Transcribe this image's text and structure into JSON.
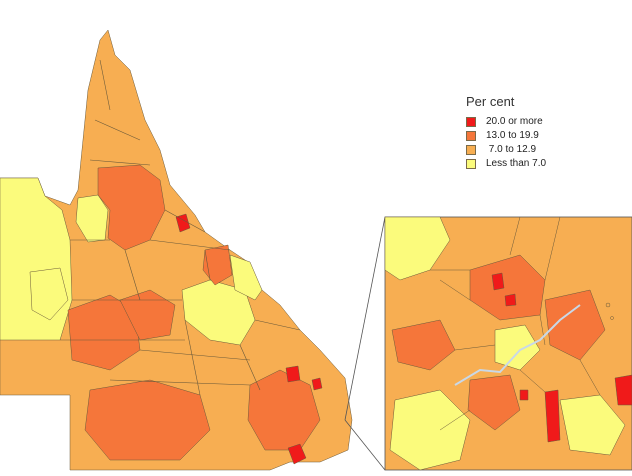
{
  "legend": {
    "title": "Per cent",
    "items": [
      {
        "label": "20.0 or more",
        "color": "#f01a1a"
      },
      {
        "label": "13.0 to 19.9",
        "color": "#f5763a"
      },
      {
        "label": " 7.0 to 12.9",
        "color": "#f7ae52"
      },
      {
        "label": "Less than 7.0",
        "color": "#fbfb7c"
      }
    ]
  },
  "colors": {
    "boundary": "#6b5a3a",
    "background": "#ffffff"
  }
}
